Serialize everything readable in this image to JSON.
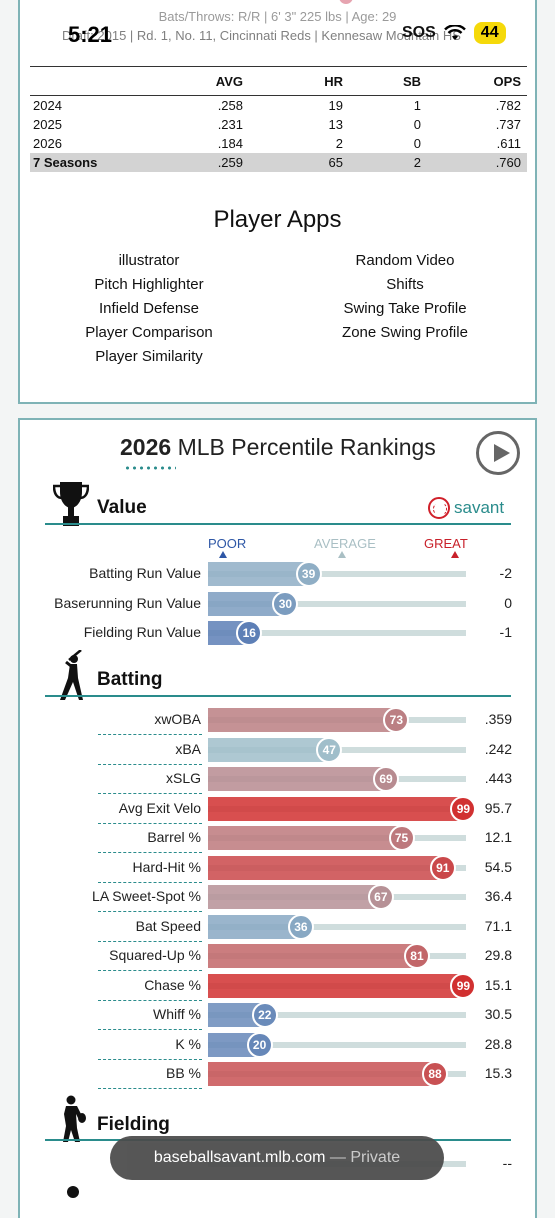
{
  "status_bar": {
    "time": "5:21",
    "sos": "SOS",
    "battery": "44"
  },
  "player": {
    "bio_line1": "Bats/Throws: R/R | 6' 3\" 225 lbs | Age: 29",
    "bio_line2": "Draft: 2015 | Rd. 1, No. 11, Cincinnati Reds | Kennesaw Mountain HS"
  },
  "stats_table": {
    "headers": [
      "",
      "AVG",
      "HR",
      "SB",
      "OPS"
    ],
    "rows": [
      [
        "2024",
        ".258",
        "19",
        "1",
        ".782"
      ],
      [
        "2025",
        ".231",
        "13",
        "0",
        ".737"
      ],
      [
        "2026",
        ".184",
        "2",
        "0",
        ".611"
      ]
    ],
    "total": [
      "7 Seasons",
      ".259",
      "65",
      "2",
      ".760"
    ]
  },
  "player_apps": {
    "title": "Player Apps",
    "left": [
      "illustrator",
      "Pitch Highlighter",
      "Infield Defense",
      "Player Comparison",
      "Player Similarity"
    ],
    "right": [
      "Random Video",
      "Shifts",
      "Swing Take Profile",
      "Zone Swing Profile"
    ]
  },
  "percentile": {
    "title_year": "2026",
    "title_rest": "MLB Percentile Rankings",
    "savant_label": "savant",
    "scale": {
      "poor": "POOR",
      "average": "AVERAGE",
      "great": "GREAT"
    },
    "colors": {
      "poor": "#3a5fab",
      "average": "#a7c4cc",
      "great": "#d22d2d",
      "accent": "#2a8c8c"
    },
    "sections": [
      {
        "name": "Value",
        "icon": "trophy-icon",
        "metrics": [
          {
            "label": "Batting Run Value",
            "pct": 39,
            "value": "-2"
          },
          {
            "label": "Baserunning Run Value",
            "pct": 30,
            "value": "0"
          },
          {
            "label": "Fielding Run Value",
            "pct": 16,
            "value": "-1"
          }
        ]
      },
      {
        "name": "Batting",
        "icon": "batter-icon",
        "metrics": [
          {
            "label": "xwOBA",
            "pct": 73,
            "value": ".359"
          },
          {
            "label": "xBA",
            "pct": 47,
            "value": ".242"
          },
          {
            "label": "xSLG",
            "pct": 69,
            "value": ".443"
          },
          {
            "label": "Avg Exit Velo",
            "pct": 99,
            "value": "95.7"
          },
          {
            "label": "Barrel %",
            "pct": 75,
            "value": "12.1"
          },
          {
            "label": "Hard-Hit %",
            "pct": 91,
            "value": "54.5"
          },
          {
            "label": "LA Sweet-Spot %",
            "pct": 67,
            "value": "36.4"
          },
          {
            "label": "Bat Speed",
            "pct": 36,
            "value": "71.1"
          },
          {
            "label": "Squared-Up %",
            "pct": 81,
            "value": "29.8"
          },
          {
            "label": "Chase %",
            "pct": 99,
            "value": "15.1"
          },
          {
            "label": "Whiff %",
            "pct": 22,
            "value": "30.5"
          },
          {
            "label": "K %",
            "pct": 20,
            "value": "28.8"
          },
          {
            "label": "BB %",
            "pct": 88,
            "value": "15.3"
          }
        ]
      },
      {
        "name": "Fielding",
        "icon": "fielder-icon",
        "metrics": []
      }
    ],
    "fielding_partial_value": "--"
  },
  "browser": {
    "url": "baseballsavant.mlb.com",
    "mode": "— Private"
  }
}
